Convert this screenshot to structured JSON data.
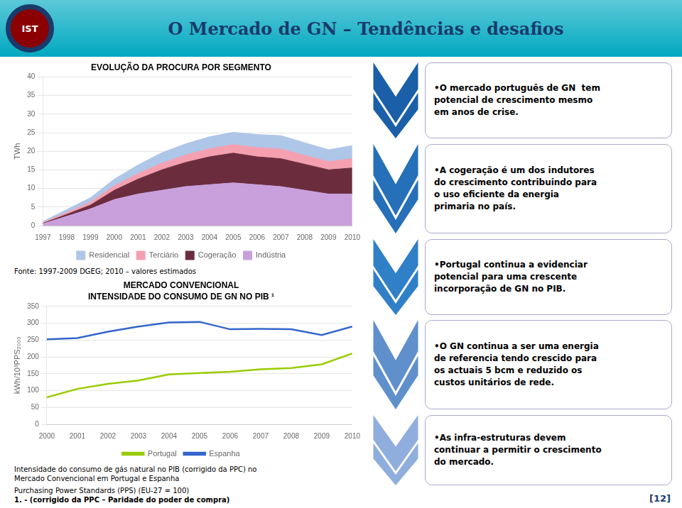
{
  "title": "O Mercado de GN – Tendências e desafios",
  "annotations": [
    "IST",
    "•O mercado português de GN  tem\npotencial de crescimento mesmo\nem anos de crise.",
    "•A cogeração é um dos indutores\ndo crescimento contribuindo para\no uso eficiente da energia\nprimaria no país.",
    "•Portugal continua a evidenciar\npotencial para uma crescente\nincorporação de GN no PIB.",
    "•O GN continua a ser uma energia\nde referencia tendo crescido para\nos actuais 5 bcm e reduzido os\ncustos unitários de rede.",
    "•As infra-estruturas devem\ncontinuar a permitir o crescimento\ndo mercado.",
    "[12]"
  ],
  "chart_data": [
    {
      "type": "area",
      "title": "EVOLUÇÃO DA PROCURA POR SEGMENTO",
      "x": [
        1997,
        1998,
        1999,
        2000,
        2001,
        2002,
        2003,
        2004,
        2005,
        2006,
        2007,
        2008,
        2009,
        2010
      ],
      "series": [
        {
          "name": "Indústria",
          "color": "#c9a0dc",
          "values": [
            0.5,
            2.5,
            4.5,
            7.0,
            8.5,
            9.5,
            10.5,
            11.0,
            11.5,
            11.0,
            10.5,
            9.5,
            8.5,
            8.5
          ]
        },
        {
          "name": "Cogeração",
          "color": "#6b2d3e",
          "values": [
            0.1,
            0.5,
            1.0,
            2.5,
            4.0,
            5.5,
            6.5,
            7.5,
            8.0,
            7.5,
            7.5,
            7.0,
            6.5,
            7.0
          ]
        },
        {
          "name": "Terciário",
          "color": "#f4a0b0",
          "values": [
            0.2,
            0.5,
            0.8,
            1.2,
            1.5,
            1.8,
            2.0,
            2.2,
            2.3,
            2.5,
            2.6,
            2.4,
            2.2,
            2.5
          ]
        },
        {
          "name": "Residencial",
          "color": "#aec6e8",
          "values": [
            0.3,
            0.8,
            1.2,
            1.8,
            2.3,
            2.8,
            3.0,
            3.2,
            3.3,
            3.5,
            3.6,
            3.4,
            3.2,
            3.5
          ]
        }
      ],
      "stacked": true,
      "y_label": "TWh",
      "xlim": [
        1997,
        2010
      ],
      "xticks": [
        1997,
        1998,
        1999,
        2000,
        2001,
        2002,
        2003,
        2004,
        2005,
        2006,
        2007,
        2008,
        2009,
        2010
      ],
      "ylim": [
        0,
        40
      ],
      "yticks": [
        0,
        5,
        10,
        15,
        20,
        25,
        30,
        35,
        40
      ],
      "grid": true,
      "legend": "bottom",
      "annotations": [
        "Fonte: 1997-2009 DGEG; 2010 – valores estimados"
      ]
    },
    {
      "type": "line",
      "title": "MERCADO CONVENCIONAL",
      "subtitle": "INTENSIDADE DO CONSUMO DE GN NO PIB ¹",
      "x": [
        2000,
        2001,
        2002,
        2003,
        2004,
        2005,
        2006,
        2007,
        2008,
        2009,
        2010
      ],
      "series": [
        {
          "name": "Portugal",
          "color": "#99cc00",
          "values": [
            80,
            105,
            120,
            130,
            148,
            152,
            156,
            163,
            167,
            178,
            210
          ]
        },
        {
          "name": "Espanha",
          "color": "#3366cc",
          "values": [
            252,
            256,
            275,
            290,
            302,
            304,
            282,
            283,
            282,
            265,
            290
          ]
        }
      ],
      "y_label": "kWh/10³PPS₂₀₀₀",
      "xlim": [
        2000,
        2010
      ],
      "xticks": [
        2000,
        2001,
        2002,
        2003,
        2004,
        2005,
        2006,
        2007,
        2008,
        2009,
        2010
      ],
      "ylim": [
        0,
        350
      ],
      "yticks": [
        0,
        50,
        100,
        150,
        200,
        250,
        300,
        350
      ],
      "grid": true,
      "legend": "bottom",
      "annotations": [
        "Intensidade do consumo de gás natural no PIB (corrigido da PPC) no",
        "Mercado Convencional em Portugal e Espanha",
        "Purchasing Power Standards (PPS) (EU-27 = 100)",
        "1. - (corrigido da PPC – Paridade do poder de compra)"
      ]
    }
  ]
}
